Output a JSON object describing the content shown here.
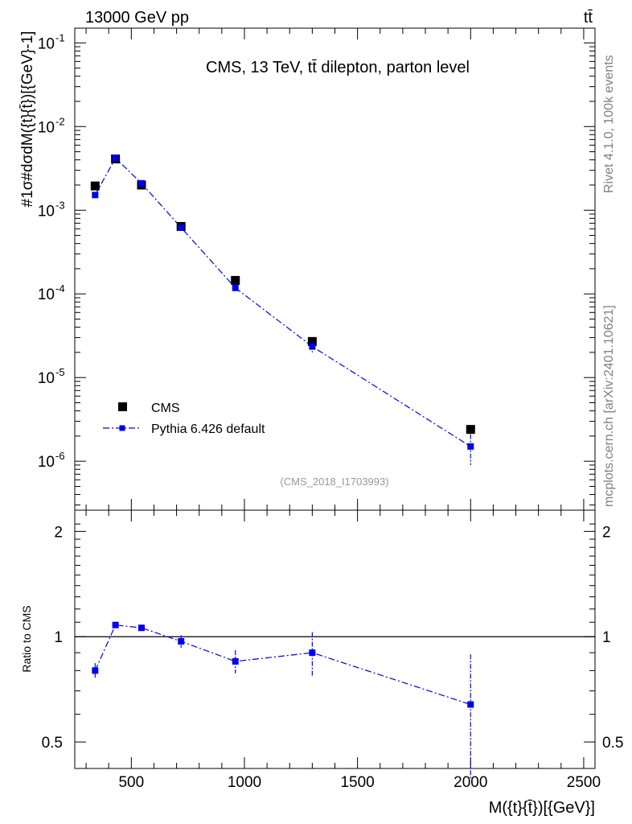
{
  "header": {
    "beam_label": "13000 GeV pp",
    "process_label": "tt̄"
  },
  "side_labels": {
    "rivet": "Rivet 4.1.0,  100k events",
    "source": "mcplots.cern.ch [arXiv:2401.10621]"
  },
  "chart_data": [
    {
      "type": "scatter",
      "title": "CMS, 13 TeV, tt̄ dilepton, parton level",
      "watermark": "(CMS_2018_I1703993)",
      "xlabel": "",
      "ylabel": "#frac{1}{#sigma}#frac{d#sigma}{dM({t}{#bar{t}})}[{GeV}^{-1}]",
      "ylabel_display": "#1σ#dσdM({t}{t̄})[{GeV}-1]",
      "y_scale": "log",
      "xlim": [
        250,
        2550
      ],
      "ylim": [
        2.6e-07,
        0.15
      ],
      "y_tick_labels": [
        "10",
        "10",
        "10",
        "10",
        "10",
        "10"
      ],
      "y_tick_exponents": [
        "-6",
        "-5",
        "-4",
        "-3",
        "-2",
        "-1"
      ],
      "y_tick_values": [
        1e-06,
        1e-05,
        0.0001,
        0.001,
        0.01,
        0.1
      ],
      "legend_position": "bottom-left",
      "series": [
        {
          "name": "CMS",
          "color": "#000000",
          "marker": "square",
          "x": [
            340,
            430,
            545,
            720,
            960,
            1300,
            2000
          ],
          "y": [
            0.00195,
            0.0041,
            0.002,
            0.00064,
            0.000145,
            2.7e-05,
            2.4e-06
          ],
          "yerr": [
            0.0001,
            0.00018,
            9e-05,
            3e-05,
            8e-06,
            1.5e-06,
            2e-07
          ]
        },
        {
          "name": "Pythia 6.426 default",
          "color": "#0000ee",
          "marker": "square",
          "line": "dash-dot",
          "x": [
            340,
            430,
            545,
            720,
            960,
            1300,
            2000
          ],
          "y": [
            0.00152,
            0.0042,
            0.0021,
            0.00062,
            0.000118,
            2.35e-05,
            1.5e-06
          ],
          "yerr": [
            7e-05,
            0.00015,
            8e-05,
            3e-05,
            8e-06,
            3.5e-06,
            6e-07
          ]
        }
      ]
    },
    {
      "type": "scatter",
      "title": "",
      "xlabel": "M({t}{t̄})[{GeV}]",
      "ylabel": "Ratio to CMS",
      "y_scale": "log",
      "xlim": [
        250,
        2550
      ],
      "ylim": [
        0.42,
        2.3
      ],
      "x_tick_labels": [
        "500",
        "1000",
        "1500",
        "2000",
        "2500"
      ],
      "x_tick_values": [
        500,
        1000,
        1500,
        2000,
        2500
      ],
      "y_tick_labels": [
        "0.5",
        "1",
        "2"
      ],
      "y_tick_values": [
        0.5,
        1,
        2
      ],
      "reference_line": 1,
      "series": [
        {
          "name": "Pythia 6.426 default",
          "color": "#0000ee",
          "marker": "square",
          "line": "dash-dot",
          "x": [
            340,
            430,
            545,
            720,
            960,
            1300,
            2000
          ],
          "y": [
            0.8,
            1.08,
            1.06,
            0.97,
            0.85,
            0.9,
            0.64
          ],
          "yerr": [
            0.04,
            0.02,
            0.02,
            0.04,
            0.065,
            0.13,
            0.25
          ]
        }
      ]
    }
  ]
}
